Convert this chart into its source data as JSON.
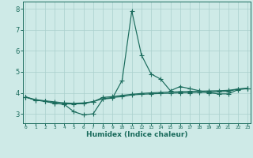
{
  "x": [
    0,
    1,
    2,
    3,
    4,
    5,
    6,
    7,
    8,
    9,
    10,
    11,
    12,
    13,
    14,
    15,
    16,
    17,
    18,
    19,
    20,
    21,
    22,
    23
  ],
  "line1": [
    3.8,
    3.65,
    3.6,
    3.5,
    3.45,
    3.1,
    2.95,
    3.0,
    3.7,
    3.75,
    4.6,
    7.9,
    5.8,
    4.9,
    4.65,
    4.1,
    4.3,
    4.2,
    4.1,
    4.0,
    3.95,
    3.95,
    4.15,
    4.2
  ],
  "line2": [
    3.8,
    3.65,
    3.6,
    3.5,
    3.47,
    3.47,
    3.48,
    3.58,
    3.78,
    3.82,
    3.88,
    3.93,
    3.97,
    4.0,
    4.02,
    4.04,
    4.06,
    4.07,
    4.08,
    4.09,
    4.1,
    4.12,
    4.18,
    4.22
  ],
  "line3": [
    3.8,
    3.68,
    3.62,
    3.57,
    3.52,
    3.5,
    3.52,
    3.58,
    3.72,
    3.78,
    3.82,
    3.9,
    3.93,
    3.95,
    3.97,
    3.98,
    4.0,
    4.0,
    4.02,
    4.03,
    4.05,
    4.07,
    4.18,
    4.22
  ],
  "color": "#1a6b5c",
  "bg_color": "#ceeae7",
  "grid_color": "#aacfcc",
  "xlabel": "Humidex (Indice chaleur)",
  "ylabel_ticks": [
    3,
    4,
    5,
    6,
    7,
    8
  ],
  "xlim": [
    -0.3,
    23.3
  ],
  "ylim": [
    2.55,
    8.35
  ],
  "markersize": 2.5,
  "linewidth": 0.85
}
